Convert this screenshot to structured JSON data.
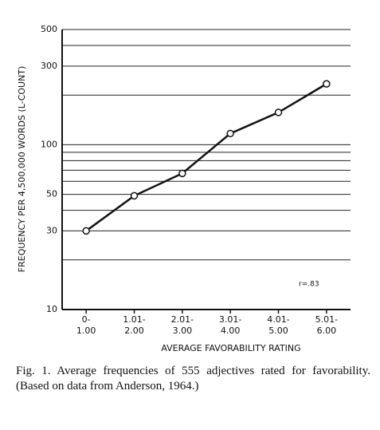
{
  "chart_data": {
    "type": "line",
    "y_label": "FREQUENCY PER 4,500,000 WORDS (L-COUNT)",
    "x_label": "AVERAGE FAVORABILITY RATING",
    "categories": [
      "0-\n1.00",
      "1.01-\n2.00",
      "2.01-\n3.00",
      "3.01-\n4.00",
      "4.01-\n5.00",
      "5.01-\n6.00"
    ],
    "values": [
      30,
      49,
      67,
      117,
      157,
      234
    ],
    "color": "#111111",
    "y_log": true,
    "ylim": [
      10,
      500
    ],
    "yticks": [
      10,
      30,
      50,
      100,
      300,
      500
    ],
    "grid": true,
    "minor_gridlines": [
      20,
      40,
      60,
      70,
      80,
      90,
      200,
      400
    ],
    "annotation": "r=.83",
    "caption": "Fig. 1. Average frequencies of 555 adjectives rated for favorability. (Based on data from Anderson, 1964.)"
  }
}
